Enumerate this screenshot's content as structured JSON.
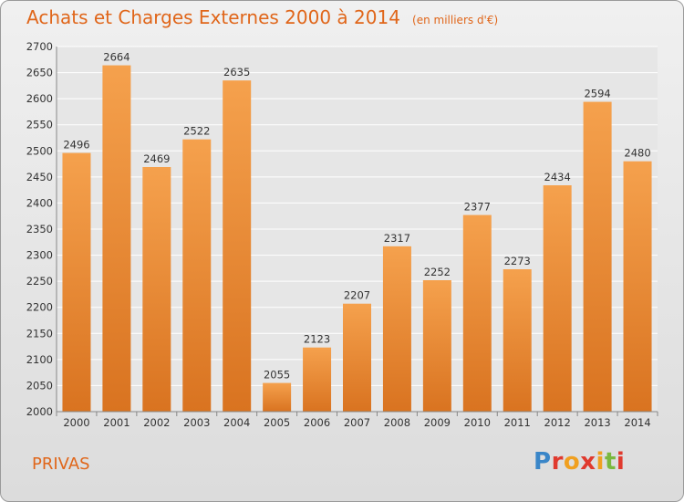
{
  "header": {
    "title": "Achats et Charges Externes 2000 à 2014",
    "unit": "(en milliers d'€)"
  },
  "footer": {
    "city": "PRIVAS",
    "logo": {
      "text": "Proxiti",
      "letter_colors": [
        "#3a86c8",
        "#e03a2e",
        "#f0a020",
        "#e03a2e",
        "#f0a020",
        "#7ab83e",
        "#e03a2e"
      ]
    }
  },
  "colors": {
    "accent": "#e0661a",
    "bar_light": "#f5a14d",
    "bar_dark": "#d97320",
    "grid": "#ffffff",
    "axis_text": "#333333"
  },
  "chart_data": {
    "type": "bar",
    "title": "Achats et Charges Externes 2000 à 2014",
    "subtitle": "(en milliers d'€)",
    "categories": [
      "2000",
      "2001",
      "2002",
      "2003",
      "2004",
      "2005",
      "2006",
      "2007",
      "2008",
      "2009",
      "2010",
      "2011",
      "2012",
      "2013",
      "2014"
    ],
    "values": [
      2496,
      2664,
      2469,
      2522,
      2635,
      2055,
      2123,
      2207,
      2317,
      2252,
      2377,
      2273,
      2434,
      2594,
      2480
    ],
    "ylim": [
      2000,
      2700
    ],
    "yticks": [
      2000,
      2050,
      2100,
      2150,
      2200,
      2250,
      2300,
      2350,
      2400,
      2450,
      2500,
      2550,
      2600,
      2650,
      2700
    ],
    "grid": true,
    "data_labels": true
  }
}
